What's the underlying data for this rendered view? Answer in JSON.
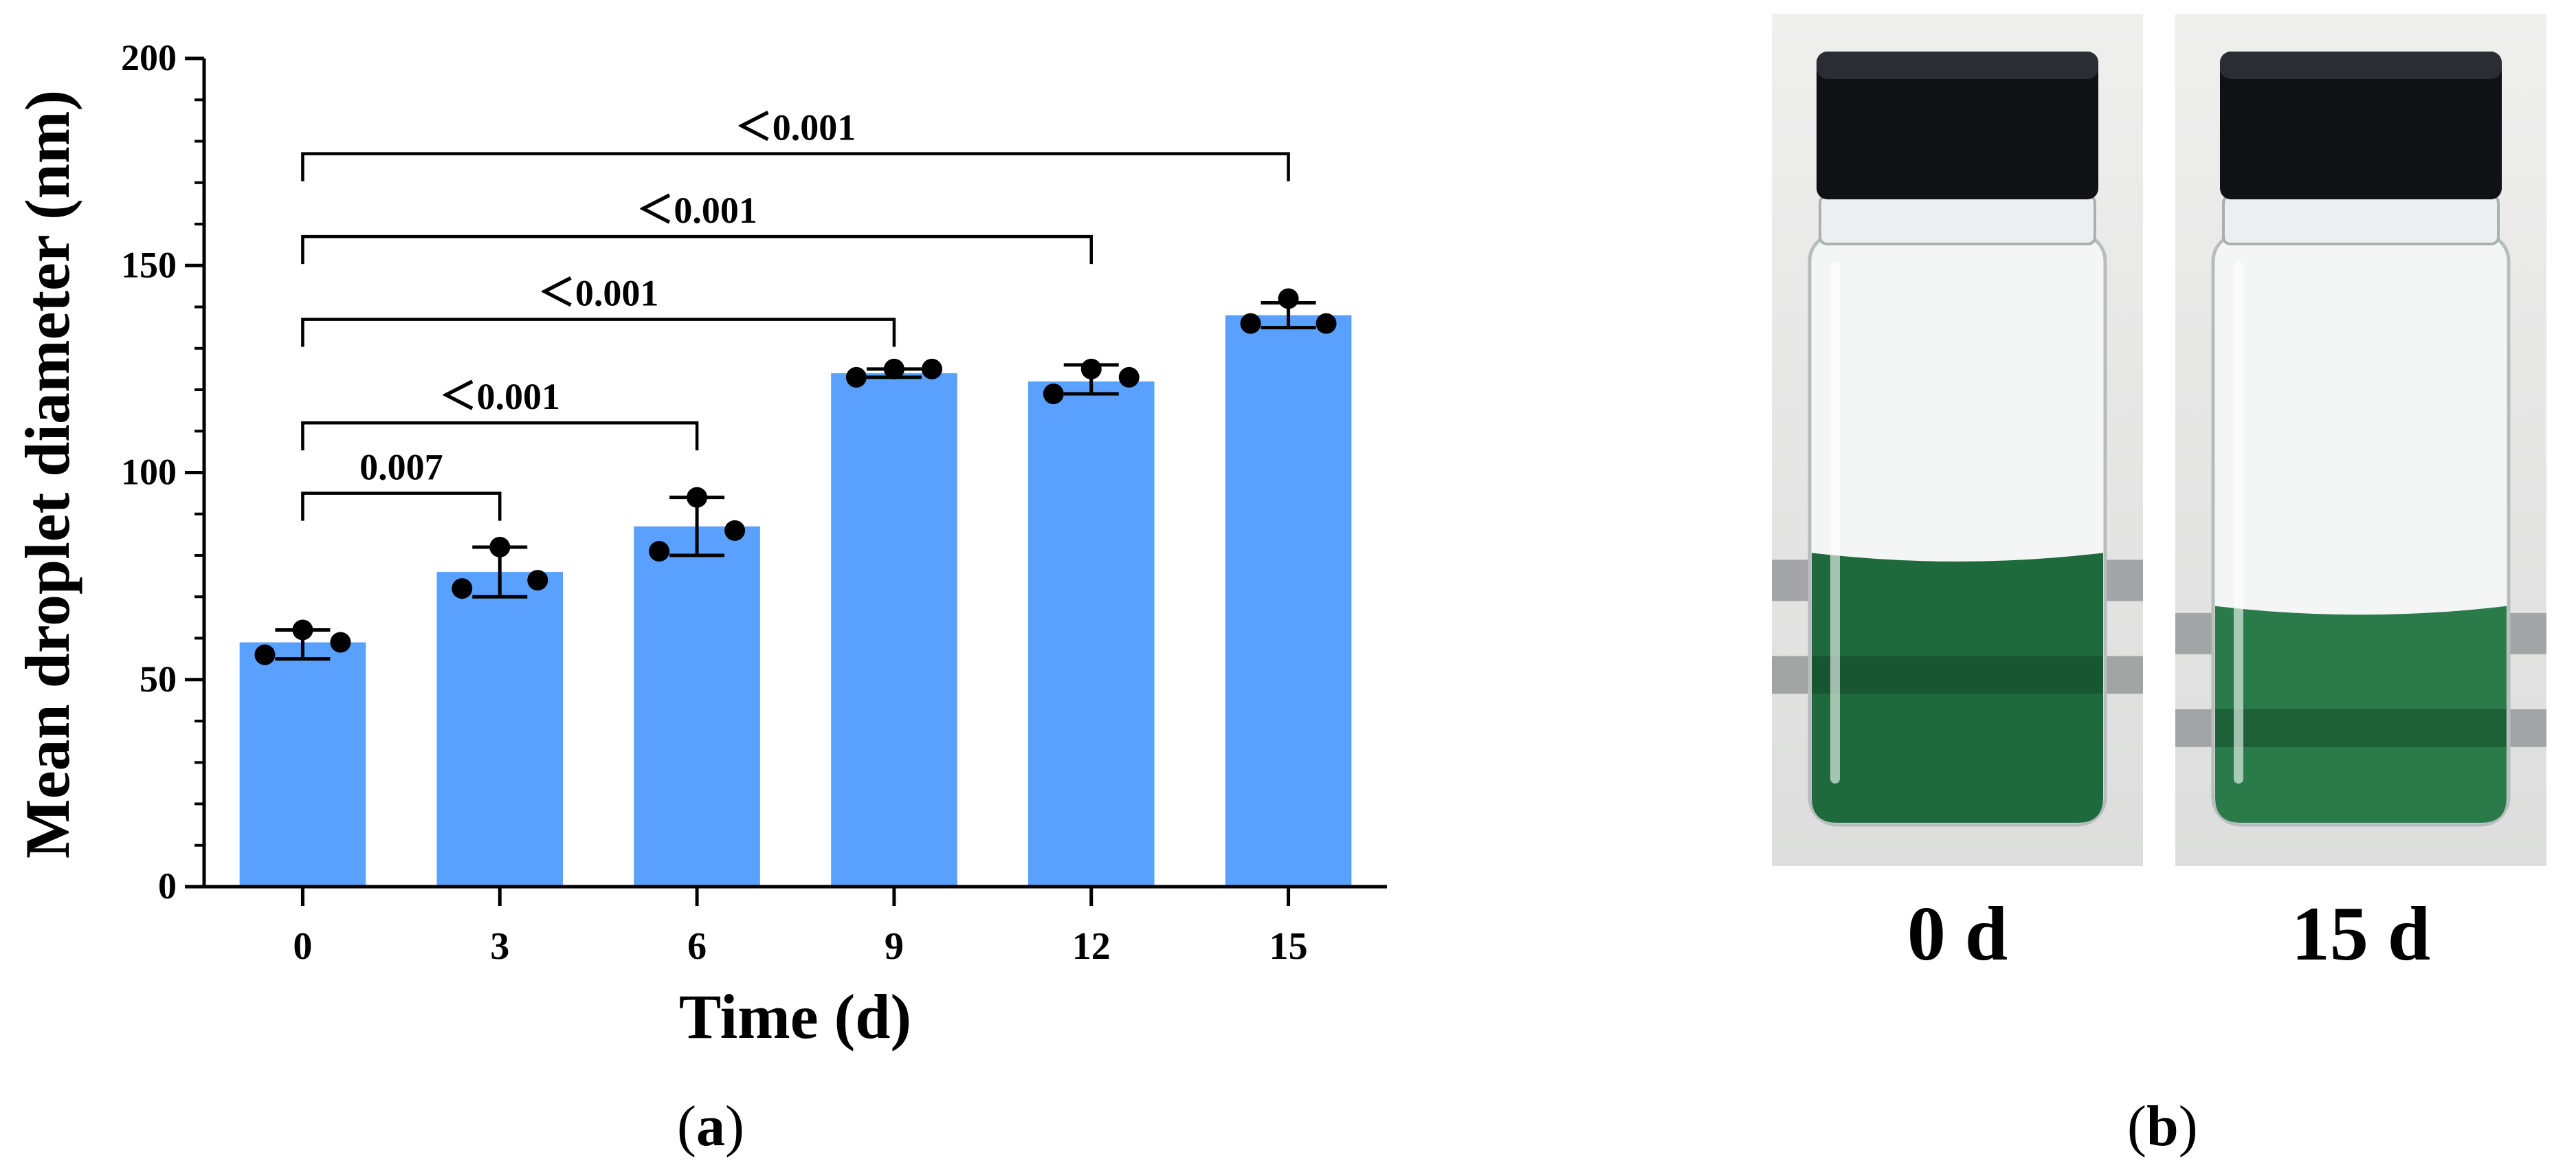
{
  "panel_a": {
    "open": "(",
    "letter": "a",
    "close": ")"
  },
  "panel_b": {
    "open": "(",
    "letter": "b",
    "close": ")"
  },
  "photos": [
    {
      "label": "0 d",
      "cap_color": "#0f1114",
      "liquid_color": "#1f6a3c",
      "liquid_level": 0.46
    },
    {
      "label": "15 d",
      "cap_color": "#0f1114",
      "liquid_color": "#2a7a4a",
      "liquid_level": 0.37
    }
  ],
  "chart_data": {
    "type": "bar",
    "categories": [
      "0",
      "3",
      "6",
      "9",
      "12",
      "15"
    ],
    "values": [
      59,
      76,
      87,
      124,
      122,
      138
    ],
    "error_low": [
      55,
      70,
      80,
      123,
      119,
      135
    ],
    "error_high": [
      62,
      82,
      94,
      125,
      126,
      141
    ],
    "points": [
      [
        56,
        62,
        59
      ],
      [
        72,
        82,
        74
      ],
      [
        81,
        94,
        86
      ],
      [
        123,
        125,
        125
      ],
      [
        119,
        125,
        123
      ],
      [
        136,
        142,
        136
      ]
    ],
    "xlabel": "Time (d)",
    "ylabel": "Mean droplet diameter (nm)",
    "ylim": [
      0,
      200
    ],
    "yticks": [
      "0",
      "50",
      "100",
      "150",
      "200"
    ],
    "bar_color": "#5aa1ff",
    "comparisons": [
      {
        "from": 0,
        "to": 1,
        "label": "0.007",
        "y": 95
      },
      {
        "from": 0,
        "to": 2,
        "label": "＜0.001",
        "y": 112
      },
      {
        "from": 0,
        "to": 3,
        "label": "＜0.001",
        "y": 137
      },
      {
        "from": 0,
        "to": 4,
        "label": "＜0.001",
        "y": 157
      },
      {
        "from": 0,
        "to": 5,
        "label": "＜0.001",
        "y": 177
      }
    ]
  }
}
